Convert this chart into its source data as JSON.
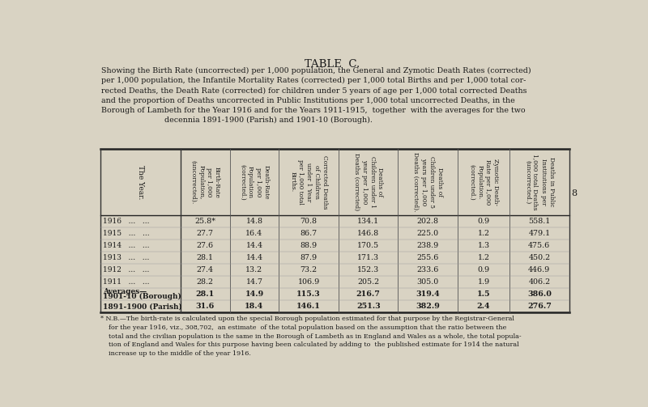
{
  "title": "TABLE  C.",
  "subtitle": "Showing the Birth Rate (uncorrected) per 1,000 population, the General and Zymotic Death Rates (corrected)\nper 1,000 population, the Infantile Mortality Rates (corrected) per 1,000 total Births and per 1,000 total cor-\nrected Deaths, the Death Rate (corrected) for children under 5 years of age per 1,000 total corrected Deaths\nand the proportion of Deaths uncorrected in Public Institutions per 1,000 total uncorrected Deaths, in the\nBorough of Lambeth for the Year 1916 and for the Years 1911-1915,  together  with the averages for the two\n                          decennia 1891-1900 (Parish) and 1901-10 (Borough).",
  "col_headers": [
    "The Year.",
    "Birth-Rate\nper 1,000\nPopulation,\n(uncorrected).",
    "Death-Rate\nper 1,000\nPopulation\n(corrected.)",
    "Corrected Deaths\nof Children\nunder 1 Year\nper 1,000 total\nBirths.",
    "Deaths of\nChildren under 1\nyear per 1,000\nDeaths (corrected)",
    "Deaths of\nChildren under 5\nyears per 1,000\nDeaths (corrected).",
    "Zymotic Death-\nRate per 1,000\nPopulation.\n(corrected.)",
    "Deaths in Public\nInstitutions per\n1,000 total Deaths\n(uncorrected.)"
  ],
  "rows": [
    [
      "1916   ...   ...",
      "25.8*",
      "14.8",
      "70.8",
      "134.1",
      "202.8",
      "0.9",
      "558.1"
    ],
    [
      "1915   ...   ...",
      "27.7",
      "16.4",
      "86.7",
      "146.8",
      "225.0",
      "1.2",
      "479.1"
    ],
    [
      "1914   ...   ...",
      "27.6",
      "14.4",
      "88.9",
      "170.5",
      "238.9",
      "1.3",
      "475.6"
    ],
    [
      "1913   ...   ...",
      "28.1",
      "14.4",
      "87.9",
      "171.3",
      "255.6",
      "1.2",
      "450.2"
    ],
    [
      "1912   ...   ...",
      "27.4",
      "13.2",
      "73.2",
      "152.3",
      "233.6",
      "0.9",
      "446.9"
    ],
    [
      "1911   ...   ...",
      "28.2",
      "14.7",
      "106.9",
      "205.2",
      "305.0",
      "1.9",
      "406.2"
    ],
    [
      "Averages—\n1901-10 (Borough)",
      "28.1",
      "14.9",
      "115.3",
      "216.7",
      "319.4",
      "1.5",
      "386.0"
    ],
    [
      "1891-1900 (Parish)",
      "31.6",
      "18.4",
      "146.1",
      "251.3",
      "382.9",
      "2.4",
      "276.7"
    ]
  ],
  "footnote": "* N.B.—The birth-rate is calculated upon the special Borough population estimated for that purpose by the Registrar-General\n    for the year 1916, viz., 308,702,  an estimate  of the total population based on the assumption that the ratio between the\n    total and the civilian population is the same in the Borough of Lambeth as in England and Wales as a whole, the total popula-\n    tion of England and Wales for this purpose having been calculated by adding to  the published estimate for 1914 the natural\n    increase up to the middle of the year 1916.",
  "background_color": "#d9d3c3",
  "text_color": "#1a1a1a",
  "page_number": "8"
}
